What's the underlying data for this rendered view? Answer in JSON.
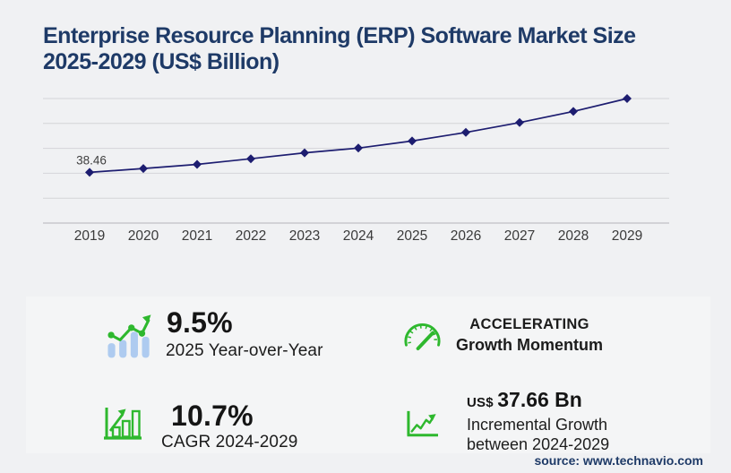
{
  "title": {
    "line1": "Enterprise Resource Planning (ERP) Software Market Size",
    "line2": "2025-2029 (US$ Billion)"
  },
  "chart_data": {
    "type": "line",
    "title": "Enterprise Resource Planning (ERP) Software Market Size 2025-2029 (US$ Billion)",
    "x": [
      2019,
      2020,
      2021,
      2022,
      2023,
      2024,
      2025,
      2026,
      2027,
      2028,
      2029
    ],
    "series": [
      {
        "name": "ERP software market size (US$ Billion)",
        "values": [
          38.46,
          41.4,
          44.5,
          48.8,
          53.3,
          56.9,
          62.3,
          68.8,
          76.3,
          84.7,
          94.5
        ]
      }
    ],
    "data_labels": {
      "2019": "38.46"
    },
    "xlabel": "",
    "ylabel": "",
    "ylim": [
      0,
      94.5
    ],
    "gridlines": 5,
    "grid": "horizontal",
    "legend": "none",
    "marker": "diamond"
  },
  "stats": [
    {
      "icon": "bar-line-growth",
      "value": "9.5%",
      "label": "2025 Year-over-Year"
    },
    {
      "icon": "speedometer",
      "value": "ACCELERATING",
      "label": "Growth Momentum"
    },
    {
      "icon": "bar-chart-growth",
      "value": "10.7%",
      "label": "CAGR 2024-2029"
    },
    {
      "icon": "trend-arrow",
      "prefix": "US$",
      "value": "37.66 Bn",
      "label": "Incremental Growth",
      "label2": "between 2024-2029"
    }
  ],
  "source": "source: www.technavio.com",
  "colors": {
    "navy": "#1e3a67",
    "line": "#1d1d70",
    "green": "#2eb82e",
    "light_blue": "#aecbf0",
    "page_bg": "#f0f1f3"
  }
}
